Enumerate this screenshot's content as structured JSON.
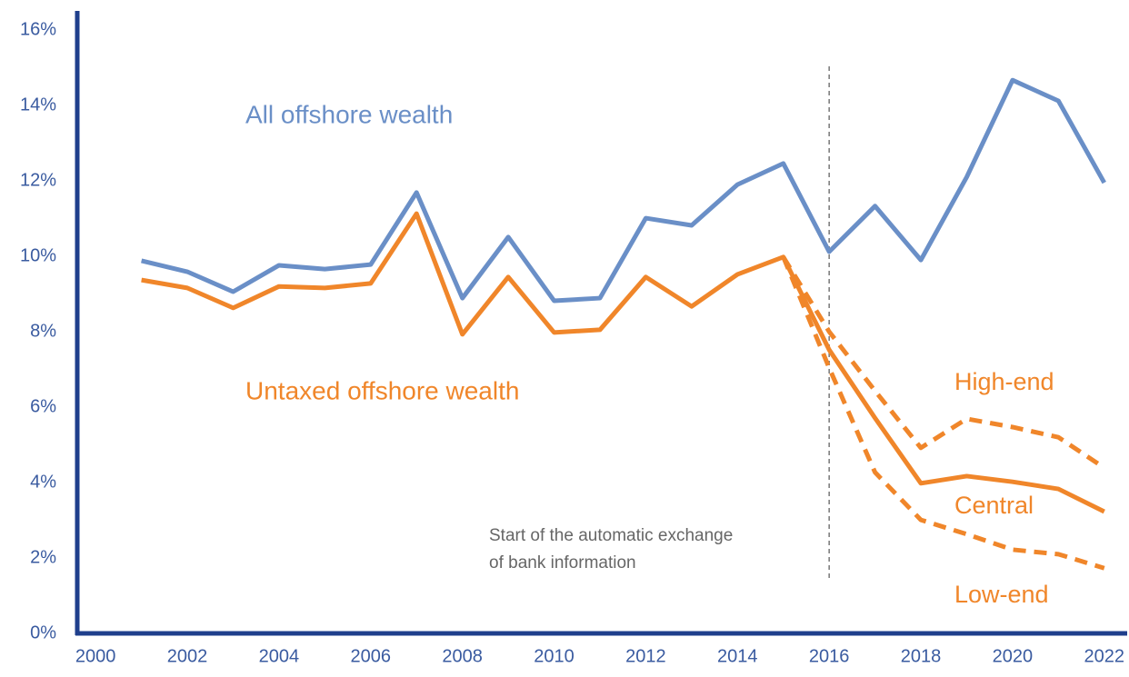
{
  "chart_data": {
    "type": "line",
    "x": [
      2001,
      2002,
      2003,
      2004,
      2005,
      2006,
      2007,
      2008,
      2009,
      2010,
      2011,
      2012,
      2013,
      2014,
      2015,
      2016,
      2017,
      2018,
      2019,
      2020,
      2021,
      2022
    ],
    "series": [
      {
        "name": "All offshore wealth",
        "color": "#6a8fc7",
        "dashed": false,
        "values": [
          9.88,
          9.59,
          9.06,
          9.76,
          9.66,
          9.78,
          11.69,
          8.89,
          10.51,
          8.82,
          8.89,
          11.01,
          10.82,
          11.9,
          12.46,
          10.12,
          11.33,
          9.9,
          12.1,
          14.67,
          14.12,
          11.95
        ]
      },
      {
        "name": "Untaxed offshore wealth",
        "scenario": "Central",
        "color": "#f0862a",
        "dashed": false,
        "values": [
          9.37,
          9.16,
          8.63,
          9.2,
          9.16,
          9.28,
          11.13,
          7.93,
          9.45,
          7.98,
          8.05,
          9.45,
          8.67,
          9.52,
          9.98,
          7.52,
          5.71,
          3.98,
          4.17,
          4.02,
          3.83,
          3.23
        ]
      },
      {
        "name": "High-end",
        "color": "#f0862a",
        "dashed": true,
        "values": [
          null,
          null,
          null,
          null,
          null,
          null,
          null,
          null,
          null,
          null,
          null,
          null,
          null,
          null,
          9.98,
          8.0,
          6.43,
          4.92,
          5.69,
          5.47,
          5.2,
          4.39
        ]
      },
      {
        "name": "Low-end",
        "color": "#f0862a",
        "dashed": true,
        "values": [
          null,
          null,
          null,
          null,
          null,
          null,
          null,
          null,
          null,
          null,
          null,
          null,
          null,
          null,
          9.98,
          7.04,
          4.27,
          3.01,
          2.63,
          2.22,
          2.1,
          1.73
        ]
      }
    ],
    "reference_line": {
      "x": 2016,
      "label": [
        "Start of the automatic exchange",
        "of bank information"
      ]
    },
    "xlim": [
      1999.6,
      2022.5
    ],
    "xticks": [
      2000,
      2002,
      2004,
      2006,
      2008,
      2010,
      2012,
      2014,
      2016,
      2018,
      2020,
      2022
    ],
    "ylim": [
      0,
      16
    ],
    "yticks": [
      {
        "value": 0,
        "label": "0%"
      },
      {
        "value": 2,
        "label": "2%"
      },
      {
        "value": 4,
        "label": "4%"
      },
      {
        "value": 6,
        "label": "6%"
      },
      {
        "value": 8,
        "label": "8%"
      },
      {
        "value": 10,
        "label": "10%"
      },
      {
        "value": 12,
        "label": "12%"
      },
      {
        "value": 14,
        "label": "14%"
      },
      {
        "value": 16,
        "label": "16%"
      }
    ],
    "axis_color": "#1f3f8c",
    "tick_color": "#3a5ba0",
    "grid": false
  }
}
